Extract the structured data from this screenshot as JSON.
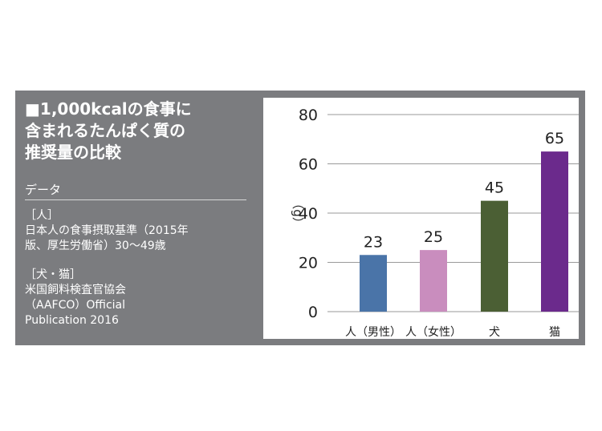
{
  "panel": {
    "title": "■1,000kcalの食事に\n含まれるたんぱく質の\n推奨量の比較",
    "data_label": "データ",
    "sources": [
      {
        "heading": "［人］",
        "body": "日本人の食事摂取基準（2015年\n版、厚生労働省）30〜49歳"
      },
      {
        "heading": "［犬・猫］",
        "body": "米国飼料検査官協会\n（AAFCO）Official\nPublication 2016"
      }
    ]
  },
  "colors": {
    "panel_bg": "#7b7c7f",
    "bars": [
      "#4a74a8",
      "#c98dbe",
      "#4b5f34",
      "#6b2a8c"
    ]
  },
  "chart_data": {
    "type": "bar",
    "categories": [
      "人（男性）",
      "人（女性）",
      "犬",
      "猫"
    ],
    "values": [
      23,
      25,
      45,
      65
    ],
    "data_labels": [
      "23",
      "25",
      "45",
      "65"
    ],
    "ylabel": "（g）",
    "ylim": [
      0,
      80
    ],
    "yticks": [
      0,
      20,
      40,
      60,
      80
    ],
    "grid": true
  }
}
